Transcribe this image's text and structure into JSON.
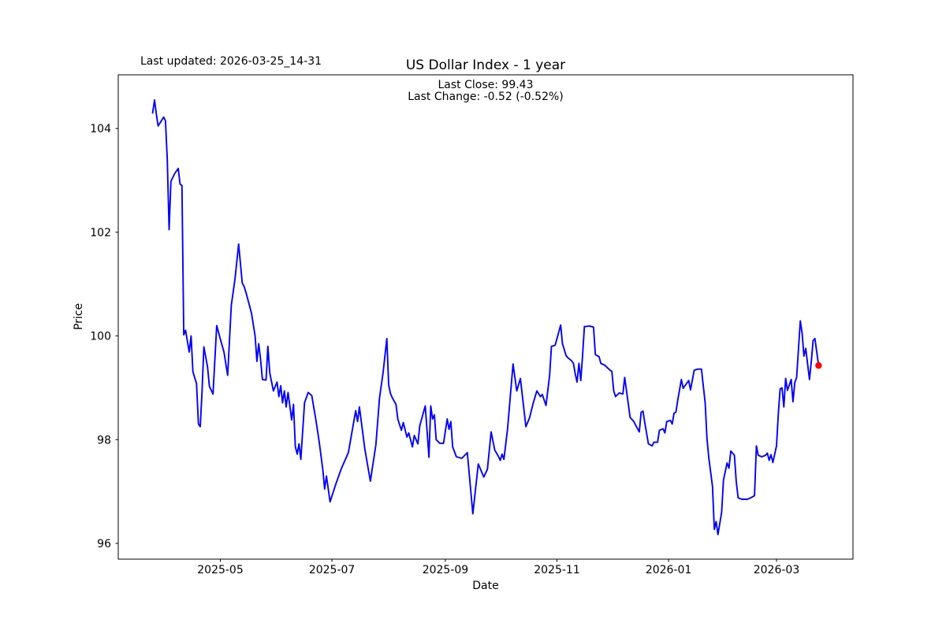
{
  "header": {
    "last_updated_label": "Last updated: 2026-03-25_14-31",
    "title": "US Dollar Index - 1 year",
    "subtitle_line1": "Last Close: 99.43",
    "subtitle_line2": "Last Change: -0.52 (-0.52%)"
  },
  "chart_data": {
    "type": "line",
    "title": "US Dollar Index - 1 year",
    "xlabel": "Date",
    "ylabel": "Price",
    "x_tick_labels": [
      "2025-05",
      "2025-07",
      "2025-09",
      "2025-11",
      "2026-01",
      "2026-03"
    ],
    "y_tick_labels": [
      "96",
      "98",
      "100",
      "102",
      "104"
    ],
    "ylim": [
      95.7,
      105.0
    ],
    "xlim": [
      "2025-03-06",
      "2026-04-11"
    ],
    "grid": false,
    "legend": "none",
    "line_color": "#0000ff",
    "marker_color": "#ff0000",
    "last_close": 99.43,
    "last_change": -0.52,
    "last_change_pct": "-0.52%",
    "last_point": {
      "date": "2026-03-24",
      "value": 99.43
    },
    "series": [
      {
        "name": "US Dollar Index",
        "points": [
          [
            "2025-03-25",
            104.3
          ],
          [
            "2025-03-26",
            104.55
          ],
          [
            "2025-03-27",
            104.28
          ],
          [
            "2025-03-28",
            104.05
          ],
          [
            "2025-03-31",
            104.22
          ],
          [
            "2025-04-01",
            104.15
          ],
          [
            "2025-04-02",
            103.4
          ],
          [
            "2025-04-03",
            102.05
          ],
          [
            "2025-04-04",
            102.98
          ],
          [
            "2025-04-06",
            103.13
          ],
          [
            "2025-04-08",
            103.23
          ],
          [
            "2025-04-09",
            102.93
          ],
          [
            "2025-04-10",
            102.9
          ],
          [
            "2025-04-11",
            100.02
          ],
          [
            "2025-04-12",
            100.11
          ],
          [
            "2025-04-14",
            99.69
          ],
          [
            "2025-04-15",
            100.0
          ],
          [
            "2025-04-16",
            99.31
          ],
          [
            "2025-04-18",
            99.08
          ],
          [
            "2025-04-19",
            98.3
          ],
          [
            "2025-04-20",
            98.25
          ],
          [
            "2025-04-21",
            98.93
          ],
          [
            "2025-04-22",
            99.79
          ],
          [
            "2025-04-24",
            99.4
          ],
          [
            "2025-04-25",
            99.03
          ],
          [
            "2025-04-27",
            98.88
          ],
          [
            "2025-04-29",
            100.2
          ],
          [
            "2025-05-01",
            99.94
          ],
          [
            "2025-05-03",
            99.69
          ],
          [
            "2025-05-05",
            99.24
          ],
          [
            "2025-05-07",
            100.59
          ],
          [
            "2025-05-09",
            101.1
          ],
          [
            "2025-05-11",
            101.77
          ],
          [
            "2025-05-13",
            101.02
          ],
          [
            "2025-05-14",
            100.95
          ],
          [
            "2025-05-15",
            100.84
          ],
          [
            "2025-05-18",
            100.44
          ],
          [
            "2025-05-20",
            100.0
          ],
          [
            "2025-05-21",
            99.51
          ],
          [
            "2025-05-22",
            99.85
          ],
          [
            "2025-05-23",
            99.54
          ],
          [
            "2025-05-24",
            99.16
          ],
          [
            "2025-05-26",
            99.15
          ],
          [
            "2025-05-27",
            99.8
          ],
          [
            "2025-05-28",
            99.29
          ],
          [
            "2025-05-30",
            98.94
          ],
          [
            "2025-06-01",
            99.11
          ],
          [
            "2025-06-02",
            98.83
          ],
          [
            "2025-06-03",
            99.04
          ],
          [
            "2025-06-04",
            98.71
          ],
          [
            "2025-06-05",
            98.94
          ],
          [
            "2025-06-06",
            98.63
          ],
          [
            "2025-06-07",
            98.91
          ],
          [
            "2025-06-09",
            98.38
          ],
          [
            "2025-06-10",
            98.68
          ],
          [
            "2025-06-11",
            97.87
          ],
          [
            "2025-06-12",
            97.72
          ],
          [
            "2025-06-13",
            97.92
          ],
          [
            "2025-06-14",
            97.62
          ],
          [
            "2025-06-16",
            98.71
          ],
          [
            "2025-06-18",
            98.91
          ],
          [
            "2025-06-20",
            98.85
          ],
          [
            "2025-06-21",
            98.63
          ],
          [
            "2025-06-22",
            98.43
          ],
          [
            "2025-06-24",
            97.97
          ],
          [
            "2025-06-26",
            97.42
          ],
          [
            "2025-06-27",
            97.05
          ],
          [
            "2025-06-28",
            97.3
          ],
          [
            "2025-06-30",
            96.8
          ],
          [
            "2025-07-03",
            97.13
          ],
          [
            "2025-07-06",
            97.43
          ],
          [
            "2025-07-10",
            97.75
          ],
          [
            "2025-07-14",
            98.56
          ],
          [
            "2025-07-15",
            98.35
          ],
          [
            "2025-07-16",
            98.63
          ],
          [
            "2025-07-19",
            97.82
          ],
          [
            "2025-07-22",
            97.2
          ],
          [
            "2025-07-25",
            97.9
          ],
          [
            "2025-07-27",
            98.8
          ],
          [
            "2025-07-29",
            99.3
          ],
          [
            "2025-07-31",
            99.95
          ],
          [
            "2025-08-01",
            99.06
          ],
          [
            "2025-08-02",
            98.89
          ],
          [
            "2025-08-03",
            98.81
          ],
          [
            "2025-08-05",
            98.68
          ],
          [
            "2025-08-06",
            98.4
          ],
          [
            "2025-08-08",
            98.18
          ],
          [
            "2025-08-09",
            98.33
          ],
          [
            "2025-08-11",
            98.05
          ],
          [
            "2025-08-12",
            98.13
          ],
          [
            "2025-08-14",
            97.86
          ],
          [
            "2025-08-15",
            98.08
          ],
          [
            "2025-08-17",
            97.92
          ],
          [
            "2025-08-18",
            98.27
          ],
          [
            "2025-08-21",
            98.65
          ],
          [
            "2025-08-22",
            98.18
          ],
          [
            "2025-08-23",
            97.66
          ],
          [
            "2025-08-24",
            98.65
          ],
          [
            "2025-08-25",
            98.4
          ],
          [
            "2025-08-26",
            98.48
          ],
          [
            "2025-08-27",
            98.0
          ],
          [
            "2025-08-29",
            97.93
          ],
          [
            "2025-08-31",
            97.93
          ],
          [
            "2025-09-02",
            98.4
          ],
          [
            "2025-09-03",
            98.2
          ],
          [
            "2025-09-04",
            98.35
          ],
          [
            "2025-09-05",
            97.86
          ],
          [
            "2025-09-07",
            97.67
          ],
          [
            "2025-09-10",
            97.64
          ],
          [
            "2025-09-13",
            97.75
          ],
          [
            "2025-09-16",
            96.57
          ],
          [
            "2025-09-19",
            97.53
          ],
          [
            "2025-09-22",
            97.28
          ],
          [
            "2025-09-24",
            97.43
          ],
          [
            "2025-09-26",
            98.15
          ],
          [
            "2025-09-28",
            97.8
          ],
          [
            "2025-09-30",
            97.68
          ],
          [
            "2025-10-01",
            97.6
          ],
          [
            "2025-10-02",
            97.72
          ],
          [
            "2025-10-03",
            97.62
          ],
          [
            "2025-10-05",
            98.2
          ],
          [
            "2025-10-08",
            99.46
          ],
          [
            "2025-10-10",
            98.94
          ],
          [
            "2025-10-12",
            99.18
          ],
          [
            "2025-10-15",
            98.25
          ],
          [
            "2025-10-17",
            98.42
          ],
          [
            "2025-10-19",
            98.7
          ],
          [
            "2025-10-21",
            98.94
          ],
          [
            "2025-10-23",
            98.83
          ],
          [
            "2025-10-24",
            98.87
          ],
          [
            "2025-10-26",
            98.66
          ],
          [
            "2025-10-28",
            99.24
          ],
          [
            "2025-10-29",
            99.8
          ],
          [
            "2025-10-31",
            99.82
          ],
          [
            "2025-11-03",
            100.21
          ],
          [
            "2025-11-04",
            99.85
          ],
          [
            "2025-11-06",
            99.62
          ],
          [
            "2025-11-07",
            99.58
          ],
          [
            "2025-11-09",
            99.52
          ],
          [
            "2025-11-10",
            99.47
          ],
          [
            "2025-11-11",
            99.27
          ],
          [
            "2025-11-12",
            99.11
          ],
          [
            "2025-11-13",
            99.47
          ],
          [
            "2025-11-14",
            99.14
          ],
          [
            "2025-11-15",
            99.62
          ],
          [
            "2025-11-16",
            100.18
          ],
          [
            "2025-11-19",
            100.19
          ],
          [
            "2025-11-21",
            100.17
          ],
          [
            "2025-11-22",
            99.64
          ],
          [
            "2025-11-24",
            99.6
          ],
          [
            "2025-11-25",
            99.47
          ],
          [
            "2025-11-27",
            99.44
          ],
          [
            "2025-11-30",
            99.34
          ],
          [
            "2025-12-01",
            99.32
          ],
          [
            "2025-12-02",
            98.94
          ],
          [
            "2025-12-03",
            98.83
          ],
          [
            "2025-12-05",
            98.9
          ],
          [
            "2025-12-07",
            98.88
          ],
          [
            "2025-12-08",
            99.2
          ],
          [
            "2025-12-10",
            98.69
          ],
          [
            "2025-12-11",
            98.43
          ],
          [
            "2025-12-13",
            98.35
          ],
          [
            "2025-12-14",
            98.28
          ],
          [
            "2025-12-16",
            98.15
          ],
          [
            "2025-12-17",
            98.53
          ],
          [
            "2025-12-18",
            98.55
          ],
          [
            "2025-12-19",
            98.33
          ],
          [
            "2025-12-21",
            97.92
          ],
          [
            "2025-12-23",
            97.88
          ],
          [
            "2025-12-24",
            97.95
          ],
          [
            "2025-12-26",
            97.95
          ],
          [
            "2025-12-27",
            98.18
          ],
          [
            "2025-12-29",
            98.21
          ],
          [
            "2025-12-30",
            98.13
          ],
          [
            "2025-12-31",
            98.35
          ],
          [
            "2026-01-02",
            98.37
          ],
          [
            "2026-01-03",
            98.3
          ],
          [
            "2026-01-04",
            98.51
          ],
          [
            "2026-01-05",
            98.53
          ],
          [
            "2026-01-06",
            98.76
          ],
          [
            "2026-01-08",
            99.16
          ],
          [
            "2026-01-09",
            98.99
          ],
          [
            "2026-01-11",
            99.09
          ],
          [
            "2026-01-12",
            99.14
          ],
          [
            "2026-01-13",
            98.96
          ],
          [
            "2026-01-15",
            99.34
          ],
          [
            "2026-01-17",
            99.36
          ],
          [
            "2026-01-19",
            99.36
          ],
          [
            "2026-01-21",
            98.71
          ],
          [
            "2026-01-22",
            98.02
          ],
          [
            "2026-01-23",
            97.65
          ],
          [
            "2026-01-25",
            97.1
          ],
          [
            "2026-01-26",
            96.27
          ],
          [
            "2026-01-27",
            96.42
          ],
          [
            "2026-01-28",
            96.17
          ],
          [
            "2026-01-30",
            96.6
          ],
          [
            "2026-01-31",
            97.22
          ],
          [
            "2026-02-02",
            97.55
          ],
          [
            "2026-02-03",
            97.45
          ],
          [
            "2026-02-04",
            97.78
          ],
          [
            "2026-02-06",
            97.7
          ],
          [
            "2026-02-07",
            97.2
          ],
          [
            "2026-02-08",
            96.88
          ],
          [
            "2026-02-10",
            96.85
          ],
          [
            "2026-02-13",
            96.85
          ],
          [
            "2026-02-15",
            96.88
          ],
          [
            "2026-02-17",
            96.92
          ],
          [
            "2026-02-18",
            97.88
          ],
          [
            "2026-02-19",
            97.7
          ],
          [
            "2026-02-21",
            97.67
          ],
          [
            "2026-02-23",
            97.7
          ],
          [
            "2026-02-24",
            97.74
          ],
          [
            "2026-02-25",
            97.6
          ],
          [
            "2026-02-26",
            97.71
          ],
          [
            "2026-02-27",
            97.56
          ],
          [
            "2026-03-01",
            97.88
          ],
          [
            "2026-03-02",
            98.5
          ],
          [
            "2026-03-03",
            98.98
          ],
          [
            "2026-03-04",
            99.0
          ],
          [
            "2026-03-05",
            98.63
          ],
          [
            "2026-03-06",
            99.18
          ],
          [
            "2026-03-07",
            98.95
          ],
          [
            "2026-03-09",
            99.16
          ],
          [
            "2026-03-10",
            98.73
          ],
          [
            "2026-03-11",
            99.1
          ],
          [
            "2026-03-12",
            99.2
          ],
          [
            "2026-03-14",
            100.29
          ],
          [
            "2026-03-15",
            100.05
          ],
          [
            "2026-03-16",
            99.61
          ],
          [
            "2026-03-17",
            99.76
          ],
          [
            "2026-03-19",
            99.16
          ],
          [
            "2026-03-20",
            99.5
          ],
          [
            "2026-03-21",
            99.91
          ],
          [
            "2026-03-22",
            99.95
          ],
          [
            "2026-03-24",
            99.43
          ]
        ]
      }
    ]
  }
}
